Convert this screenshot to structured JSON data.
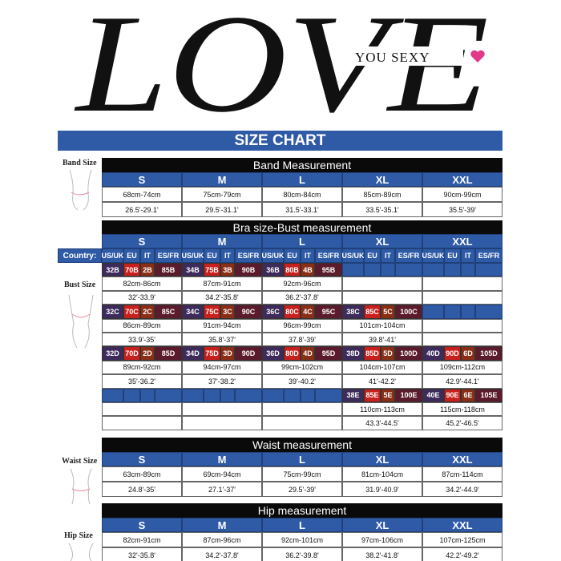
{
  "logo": {
    "word": "LOVE",
    "tagline": "YOU SEXY"
  },
  "title": "SIZE CHART",
  "side_labels": [
    "Band Size",
    "Bust Size",
    "Waist Size",
    "Hip Size"
  ],
  "band": {
    "header": "Band Measurement",
    "sizes": [
      "S",
      "M",
      "L",
      "XL",
      "XXL"
    ],
    "rows": [
      [
        "68cm-74cm",
        "75cm-79cm",
        "80cm-84cm",
        "85cm-89cm",
        "90cm-99cm"
      ],
      [
        "26.5'-29.1'",
        "29.5'-31.1'",
        "31.5'-33.1'",
        "33.5'-35.1'",
        "35.5'-39'"
      ]
    ]
  },
  "bust": {
    "header": "Bra size-Bust measurement",
    "sizes": [
      "S",
      "M",
      "L",
      "XL",
      "XXL"
    ],
    "country_label": "Country:",
    "countries": [
      "US/UK",
      "EU",
      "IT",
      "ES/FR"
    ],
    "groups": [
      {
        "codes": [
          [
            "32B",
            "70B",
            "2B",
            "85B"
          ],
          [
            "34B",
            "75B",
            "3B",
            "90B"
          ],
          [
            "36B",
            "80B",
            "4B",
            "95B"
          ],
          null,
          null
        ],
        "cm": [
          "82cm-86cm",
          "87cm-91cm",
          "92cm-96cm",
          null,
          null
        ],
        "inch": [
          "32'-33.9'",
          "34.2'-35.8'",
          "36.2'-37.8'",
          null,
          null
        ]
      },
      {
        "codes": [
          [
            "32C",
            "70C",
            "2C",
            "85C"
          ],
          [
            "34C",
            "75C",
            "3C",
            "90C"
          ],
          [
            "36C",
            "80C",
            "4C",
            "95C"
          ],
          [
            "38C",
            "85C",
            "5C",
            "100C"
          ],
          null
        ],
        "cm": [
          "86cm-89cm",
          "91cm-94cm",
          "96cm-99cm",
          "101cm-104cm",
          null
        ],
        "inch": [
          "33.9'-35'",
          "35.8'-37'",
          "37.8'-39'",
          "39.8'-41'",
          null
        ]
      },
      {
        "codes": [
          [
            "32D",
            "70D",
            "2D",
            "85D"
          ],
          [
            "34D",
            "75D",
            "3D",
            "90D"
          ],
          [
            "36D",
            "80D",
            "4D",
            "95D"
          ],
          [
            "38D",
            "85D",
            "5D",
            "100D"
          ],
          [
            "40D",
            "90D",
            "6D",
            "105D"
          ]
        ],
        "cm": [
          "89cm-92cm",
          "94cm-97cm",
          "99cm-102cm",
          "104cm-107cm",
          "109cm-112cm"
        ],
        "inch": [
          "35'-36.2'",
          "37'-38.2'",
          "39'-40.2'",
          "41'-42.2'",
          "42.9'-44.1'"
        ]
      },
      {
        "codes": [
          null,
          null,
          null,
          [
            "38E",
            "85E",
            "5E",
            "100E"
          ],
          [
            "40E",
            "90E",
            "6E",
            "105E"
          ]
        ],
        "cm": [
          null,
          null,
          null,
          "110cm-113cm",
          "115cm-118cm"
        ],
        "inch": [
          null,
          null,
          null,
          "43.3'-44.5'",
          "45.2'-46.5'"
        ]
      }
    ]
  },
  "waist": {
    "header": "Waist measurement",
    "sizes": [
      "S",
      "M",
      "L",
      "XL",
      "XXL"
    ],
    "rows": [
      [
        "63cm-89cm",
        "69cm-94cm",
        "75cm-99cm",
        "81cm-104cm",
        "87cm-114cm"
      ],
      [
        "24.8'-35'",
        "27.1'-37'",
        "29.5'-39'",
        "31.9'-40.9'",
        "34.2'-44.9'"
      ]
    ]
  },
  "hip": {
    "header": "Hip measurement",
    "sizes": [
      "S",
      "M",
      "L",
      "XL",
      "XXL"
    ],
    "rows": [
      [
        "82cm-91cm",
        "87cm-96cm",
        "92cm-101cm",
        "97cm-106cm",
        "107cm-125cm"
      ],
      [
        "32'-35.8'",
        "34.2'-37.8'",
        "36.2'-39.8'",
        "38.2'-41.8'",
        "42.2'-49.2'"
      ]
    ]
  }
}
